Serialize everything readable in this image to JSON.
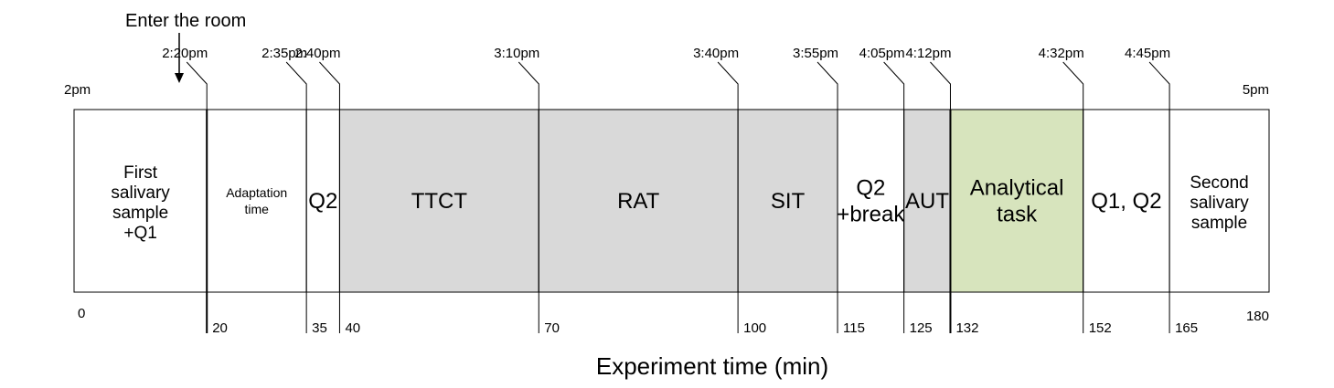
{
  "timeline": {
    "start_label": "2pm",
    "end_label": "5pm",
    "total_minutes": 180,
    "colors": {
      "grey": "#d9d9d9",
      "green": "#d7e4bd",
      "white": "#ffffff",
      "border": "#000000"
    },
    "segments": [
      {
        "id": "first-salivary-sample",
        "start": 0,
        "end": 20,
        "lines": [
          "First",
          "salivary",
          "sample",
          "+Q1"
        ],
        "fill": "white",
        "size": "med"
      },
      {
        "id": "adaptation-time",
        "start": 20,
        "end": 35,
        "lines": [
          "Adaptation",
          "time"
        ],
        "fill": "white",
        "size": "small"
      },
      {
        "id": "q2",
        "start": 35,
        "end": 40,
        "lines": [
          "Q2"
        ],
        "fill": "white",
        "size": "normal"
      },
      {
        "id": "ttct",
        "start": 40,
        "end": 70,
        "lines": [
          "TTCT"
        ],
        "fill": "grey",
        "size": "normal"
      },
      {
        "id": "rat",
        "start": 70,
        "end": 100,
        "lines": [
          "RAT"
        ],
        "fill": "grey",
        "size": "normal"
      },
      {
        "id": "sit",
        "start": 100,
        "end": 115,
        "lines": [
          "SIT"
        ],
        "fill": "grey",
        "size": "normal"
      },
      {
        "id": "q2-break",
        "start": 115,
        "end": 125,
        "lines": [
          "Q2",
          "+break"
        ],
        "fill": "white",
        "size": "normal"
      },
      {
        "id": "aut",
        "start": 125,
        "end": 132,
        "lines": [
          "AUT"
        ],
        "fill": "grey",
        "size": "normal"
      },
      {
        "id": "analytical-task",
        "start": 132,
        "end": 152,
        "lines": [
          "Analytical",
          "task"
        ],
        "fill": "green",
        "size": "normal"
      },
      {
        "id": "q1-q2",
        "start": 152,
        "end": 165,
        "lines": [
          "Q1, Q2"
        ],
        "fill": "white",
        "size": "normal"
      },
      {
        "id": "second-salivary-sample",
        "start": 165,
        "end": 180,
        "lines": [
          "Second",
          "salivary",
          "sample"
        ],
        "fill": "white",
        "size": "med"
      }
    ],
    "markers": [
      {
        "minute": 20,
        "clock": "2:20pm",
        "label": "20"
      },
      {
        "minute": 35,
        "clock": "2:35pm",
        "label": "35"
      },
      {
        "minute": 40,
        "clock": "2:40pm",
        "label": "40"
      },
      {
        "minute": 70,
        "clock": "3:10pm",
        "label": "70"
      },
      {
        "minute": 100,
        "clock": "3:40pm",
        "label": "100"
      },
      {
        "minute": 115,
        "clock": "3:55pm",
        "label": "115"
      },
      {
        "minute": 125,
        "clock": "4:05pm",
        "label": "125"
      },
      {
        "minute": 132,
        "clock": "4:12pm",
        "label": "132"
      },
      {
        "minute": 152,
        "clock": "4:32pm",
        "label": "152"
      },
      {
        "minute": 165,
        "clock": "4:45pm",
        "label": "165"
      }
    ],
    "axis_start_label": "0",
    "axis_end_label": "180",
    "enter_room_label": "Enter the room",
    "enter_room_minute": 20
  },
  "axis_title": "Experiment time (min)"
}
